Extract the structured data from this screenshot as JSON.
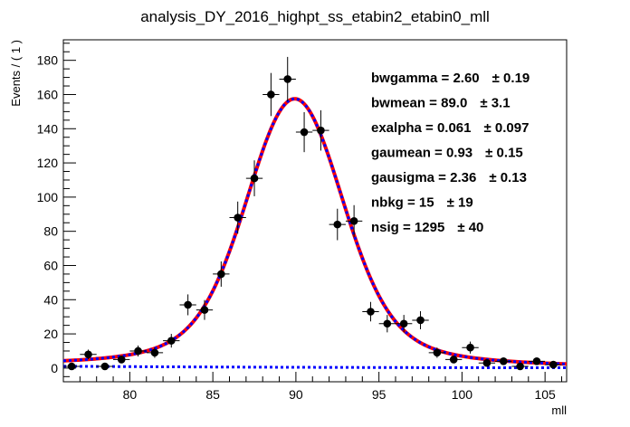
{
  "chart_data": {
    "type": "scatter",
    "title": "analysis_DY_2016_highpt_ss_etabin2_etabin0_mll",
    "xlabel": "mll",
    "ylabel": "Events / ( 1 )",
    "xlim": [
      76,
      106.3
    ],
    "ylim": [
      -8,
      192
    ],
    "xticks": [
      80,
      85,
      90,
      95,
      100,
      105
    ],
    "yticks": [
      0,
      20,
      40,
      60,
      80,
      100,
      120,
      140,
      160,
      180
    ],
    "series": [
      {
        "kind": "data_points",
        "x": [
          76.5,
          77.5,
          78.5,
          79.5,
          80.5,
          81.5,
          82.5,
          83.5,
          84.5,
          85.5,
          86.5,
          87.5,
          88.5,
          89.5,
          90.5,
          91.5,
          92.5,
          93.5,
          94.5,
          95.5,
          96.5,
          97.5,
          98.5,
          99.5,
          100.5,
          101.5,
          102.5,
          103.5,
          104.5,
          105.5
        ],
        "y": [
          1,
          8,
          1,
          5,
          10,
          9,
          16,
          37,
          34,
          55,
          88,
          111,
          160,
          169,
          138,
          139,
          84,
          86,
          33,
          26,
          26,
          28,
          9,
          5,
          12,
          3,
          4,
          1,
          4,
          2
        ],
        "err": [
          1,
          2.8,
          1,
          2.2,
          3.2,
          3,
          4,
          6.1,
          5.8,
          7.4,
          9.4,
          10.5,
          12.6,
          13,
          11.7,
          11.8,
          9.2,
          9.3,
          5.7,
          5.1,
          5.1,
          5.3,
          3,
          2.2,
          3.5,
          1.7,
          2,
          1,
          2,
          1.4
        ],
        "color": "#000000"
      },
      {
        "kind": "total_fit",
        "color_outer": "#ff0000",
        "color_inner": "#0000ff"
      },
      {
        "kind": "background_fit",
        "color": "#0000ff"
      }
    ],
    "fit_params": {
      "bwgamma": 2.6,
      "bwmean": 89.0,
      "exalpha": 0.061,
      "gaumean": 0.93,
      "gausigma": 2.36,
      "nbkg": 15,
      "nsig": 1295
    },
    "annotations": [
      {
        "name": "bwgamma = ",
        "value": "2.60",
        "err": "± 0.19"
      },
      {
        "name": "bwmean = ",
        "value": "89.0",
        "err": "± 3.1"
      },
      {
        "name": "exalpha = ",
        "value": "0.061",
        "err": "± 0.097"
      },
      {
        "name": "gaumean = ",
        "value": "0.93",
        "err": "± 0.15"
      },
      {
        "name": "gausigma = ",
        "value": "2.36",
        "err": "± 0.13"
      },
      {
        "name": "nbkg = ",
        "value": "15",
        "err": "± 19"
      },
      {
        "name": "nsig = ",
        "value": "1295",
        "err": "± 40"
      }
    ],
    "legend": "none",
    "grid": false
  }
}
